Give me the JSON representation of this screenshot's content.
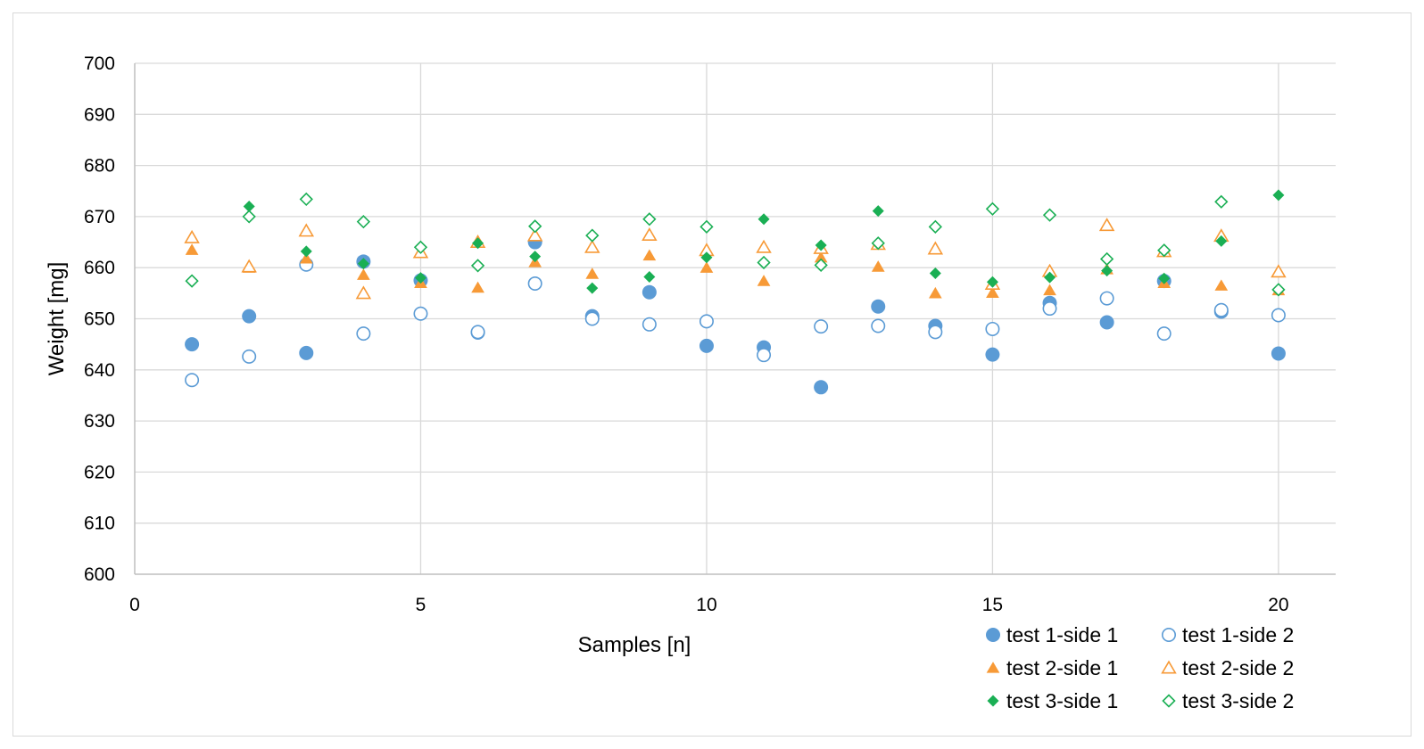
{
  "chart_data": {
    "type": "scatter",
    "title": "",
    "xlabel": "Samples [n]",
    "ylabel": "Weight [mg]",
    "xlim": [
      0,
      21
    ],
    "ylim": [
      600,
      700
    ],
    "xticks": [
      0,
      5,
      10,
      15,
      20
    ],
    "yticks": [
      600,
      610,
      620,
      630,
      640,
      650,
      660,
      670,
      680,
      690,
      700
    ],
    "grid": "major",
    "legend_position": "bottom-right",
    "x": [
      1,
      2,
      3,
      4,
      5,
      6,
      7,
      8,
      9,
      10,
      11,
      12,
      13,
      14,
      15,
      16,
      17,
      18,
      19,
      20
    ],
    "series": [
      {
        "name": "test 1-side 1",
        "marker": "circle",
        "filled": true,
        "color": "#5b9bd5",
        "values": [
          645,
          650.5,
          643.3,
          661.2,
          657.5,
          647.3,
          665,
          650.5,
          655.2,
          644.7,
          644.4,
          636.6,
          652.4,
          648.6,
          643,
          653.1,
          649.3,
          657.4,
          651.4,
          643.2
        ]
      },
      {
        "name": "test 1-side 2",
        "marker": "circle",
        "filled": false,
        "color": "#5b9bd5",
        "values": [
          638,
          642.6,
          660.6,
          647.1,
          651,
          647.4,
          656.9,
          650,
          648.9,
          649.5,
          642.9,
          648.5,
          648.6,
          647.4,
          648,
          652,
          654,
          647.1,
          651.7,
          650.7
        ]
      },
      {
        "name": "test 2-side 1",
        "marker": "triangle",
        "filled": true,
        "color": "#f79a37",
        "values": [
          663.5,
          660,
          661.8,
          658.6,
          657,
          656.1,
          661.1,
          658.8,
          662.4,
          660,
          657.4,
          662,
          660.2,
          655,
          655.1,
          655.6,
          659.7,
          657,
          656.5,
          655.6
        ]
      },
      {
        "name": "test 2-side 2",
        "marker": "triangle",
        "filled": false,
        "color": "#f79a37",
        "values": [
          665.9,
          660.2,
          667.2,
          655,
          663,
          665,
          666.3,
          664,
          666.4,
          663.4,
          664,
          663.8,
          664.6,
          663.7,
          656.8,
          659.3,
          668.3,
          663.2,
          666.2,
          659.2
        ]
      },
      {
        "name": "test 3-side 1",
        "marker": "diamond",
        "filled": true,
        "color": "#1aaf54",
        "values": [
          657.4,
          672,
          663.2,
          660.8,
          658,
          664.8,
          662.2,
          656,
          658.2,
          662,
          669.5,
          664.4,
          671.1,
          658.9,
          657.2,
          658.1,
          659.4,
          657.9,
          665.2,
          674.2
        ]
      },
      {
        "name": "test 3-side 2",
        "marker": "diamond",
        "filled": false,
        "color": "#1aaf54",
        "values": [
          657.4,
          670,
          673.4,
          669,
          664,
          660.4,
          668.1,
          666.3,
          669.5,
          668,
          661,
          660.5,
          664.8,
          668,
          671.5,
          670.3,
          661.7,
          663.4,
          672.9,
          655.7
        ]
      }
    ]
  },
  "colors": {
    "frame_border": "#d9d9d9",
    "grid": "#d9d9d9",
    "axis": "#bfbfbf"
  }
}
